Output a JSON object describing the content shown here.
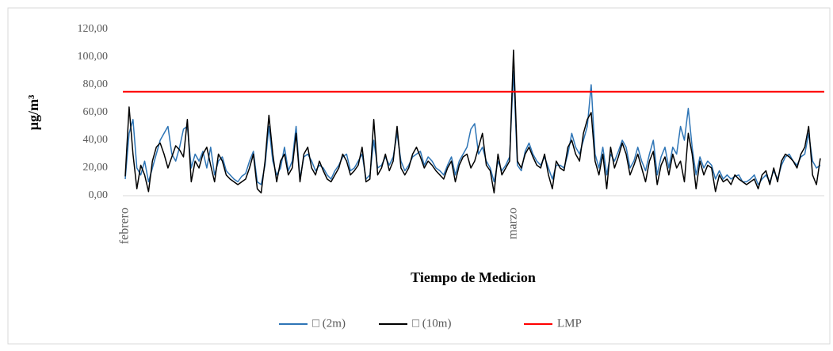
{
  "chart_data": {
    "type": "line",
    "y_label": "µg/m³",
    "x_label": "Tiempo de Medicion",
    "categories": [
      "febrero",
      null,
      null,
      null,
      null,
      null,
      null,
      null,
      null,
      null,
      null,
      null,
      null,
      null,
      null,
      null,
      null,
      null,
      null,
      null,
      null,
      null,
      null,
      null,
      null,
      null,
      null,
      null,
      null,
      null,
      null,
      null,
      null,
      null,
      null,
      null,
      null,
      null,
      null,
      null,
      null,
      null,
      null,
      null,
      null,
      null,
      null,
      null,
      null,
      null,
      null,
      null,
      null,
      null,
      null,
      null,
      null,
      null,
      null,
      null,
      null,
      null,
      null,
      null,
      null,
      null,
      null,
      null,
      null,
      null,
      null,
      null,
      null,
      null,
      null,
      null,
      null,
      null,
      null,
      null,
      null,
      null,
      null,
      null,
      null,
      null,
      null,
      null,
      null,
      null,
      null,
      null,
      null,
      null,
      null,
      null,
      null,
      null,
      null,
      null,
      "marzo",
      null,
      null,
      null,
      null,
      null,
      null,
      null,
      null,
      null,
      null,
      null,
      null,
      null,
      null,
      null,
      null,
      null,
      null,
      null,
      null,
      null,
      null,
      null,
      null,
      null,
      null,
      null,
      null,
      null,
      null,
      null,
      null,
      null,
      null,
      null,
      null,
      null,
      null,
      null,
      null,
      null,
      null,
      null,
      null,
      null,
      null,
      null,
      null,
      null,
      null,
      null,
      null,
      null,
      null,
      null,
      null,
      null,
      null,
      null,
      null,
      null,
      null,
      null,
      null,
      null,
      null,
      null,
      null,
      null,
      null,
      null,
      null,
      null,
      null,
      null,
      null,
      null,
      null,
      null
    ],
    "series": [
      {
        "name": "□ (2m)",
        "color": "#2e75b6",
        "values": [
          12,
          45,
          55,
          20,
          15,
          25,
          10,
          20,
          30,
          40,
          45,
          50,
          30,
          25,
          35,
          48,
          50,
          20,
          30,
          25,
          32,
          20,
          35,
          15,
          25,
          28,
          18,
          15,
          12,
          10,
          14,
          16,
          25,
          32,
          10,
          8,
          22,
          50,
          25,
          15,
          20,
          35,
          18,
          25,
          50,
          12,
          28,
          30,
          25,
          18,
          22,
          20,
          15,
          12,
          18,
          22,
          28,
          30,
          18,
          20,
          25,
          30,
          12,
          15,
          40,
          20,
          22,
          28,
          22,
          28,
          45,
          25,
          18,
          22,
          28,
          30,
          32,
          22,
          28,
          25,
          20,
          18,
          15,
          22,
          28,
          15,
          25,
          30,
          35,
          48,
          52,
          30,
          35,
          25,
          20,
          10,
          25,
          18,
          22,
          28,
          90,
          22,
          18,
          32,
          38,
          30,
          25,
          22,
          28,
          20,
          12,
          22,
          22,
          20,
          30,
          45,
          35,
          30,
          40,
          50,
          80,
          30,
          20,
          35,
          15,
          30,
          25,
          32,
          40,
          35,
          20,
          25,
          35,
          25,
          18,
          30,
          40,
          15,
          28,
          35,
          20,
          35,
          30,
          50,
          40,
          63,
          35,
          15,
          28,
          20,
          25,
          22,
          12,
          18,
          12,
          15,
          12,
          14,
          15,
          10,
          10,
          12,
          15,
          8,
          12,
          15,
          10,
          18,
          12,
          22,
          28,
          30,
          25,
          22,
          28,
          30,
          45,
          25,
          20,
          22
        ]
      },
      {
        "name": "□ (10m)",
        "color": "#000000",
        "values": [
          14,
          64,
          30,
          5,
          22,
          15,
          3,
          25,
          35,
          38,
          30,
          20,
          28,
          36,
          33,
          28,
          55,
          10,
          25,
          20,
          30,
          35,
          22,
          10,
          30,
          25,
          15,
          12,
          10,
          8,
          10,
          12,
          20,
          30,
          5,
          2,
          25,
          58,
          30,
          10,
          25,
          30,
          15,
          20,
          45,
          10,
          30,
          35,
          20,
          15,
          25,
          18,
          12,
          10,
          15,
          20,
          30,
          25,
          15,
          18,
          22,
          35,
          10,
          12,
          55,
          15,
          20,
          30,
          18,
          25,
          50,
          20,
          15,
          20,
          30,
          35,
          28,
          20,
          25,
          22,
          18,
          15,
          12,
          20,
          25,
          10,
          22,
          28,
          30,
          20,
          25,
          35,
          45,
          22,
          18,
          2,
          30,
          15,
          20,
          25,
          105,
          25,
          20,
          30,
          35,
          28,
          22,
          20,
          30,
          15,
          5,
          25,
          20,
          18,
          35,
          40,
          30,
          25,
          45,
          55,
          60,
          25,
          15,
          30,
          5,
          35,
          20,
          28,
          38,
          30,
          15,
          22,
          30,
          20,
          10,
          25,
          32,
          8,
          22,
          28,
          15,
          30,
          20,
          25,
          10,
          45,
          30,
          5,
          25,
          15,
          22,
          20,
          3,
          15,
          10,
          12,
          8,
          15,
          12,
          10,
          8,
          10,
          12,
          5,
          15,
          18,
          8,
          20,
          10,
          25,
          30,
          28,
          25,
          20,
          30,
          35,
          50,
          15,
          8,
          27
        ]
      }
    ],
    "reference_line": {
      "name": "LMP",
      "value": 75,
      "color": "#ff0000"
    },
    "ylim": [
      0,
      120
    ],
    "yticks": [
      {
        "value": 0,
        "label": "0,00"
      },
      {
        "value": 20,
        "label": "20,00"
      },
      {
        "value": 40,
        "label": "40,00"
      },
      {
        "value": 60,
        "label": "60,00"
      },
      {
        "value": 80,
        "label": "80,00"
      },
      {
        "value": 100,
        "label": "100,00"
      },
      {
        "value": 120,
        "label": "120,00"
      }
    ],
    "grid": false,
    "legend": "bottom"
  }
}
